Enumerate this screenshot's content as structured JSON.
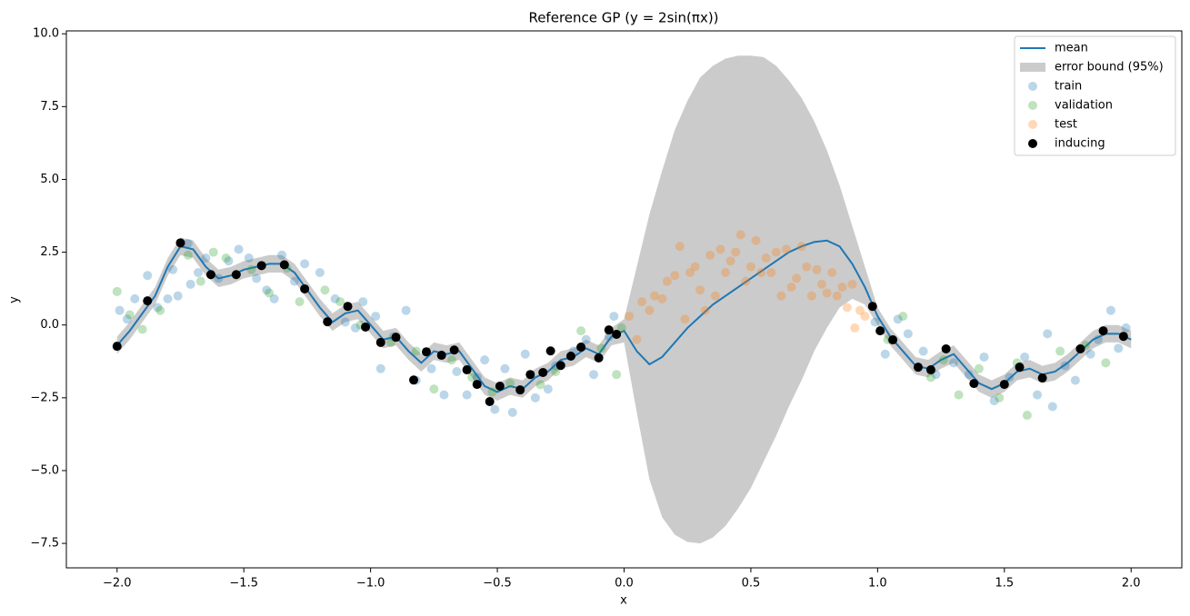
{
  "chart_data": {
    "type": "line",
    "title": "Reference GP (y = 2sin(πx))",
    "x_label": "x",
    "y_label": "y",
    "xlim": [
      -2.2,
      2.2
    ],
    "ylim": [
      -8.34,
      10.1
    ],
    "xticks": [
      {
        "value": -2,
        "label": "−2.0"
      },
      {
        "value": -1.5,
        "label": "−1.5"
      },
      {
        "value": -1,
        "label": "−1.0"
      },
      {
        "value": -0.5,
        "label": "−0.5"
      },
      {
        "value": 0,
        "label": "0.0"
      },
      {
        "value": 0.5,
        "label": "0.5"
      },
      {
        "value": 1,
        "label": "1.0"
      },
      {
        "value": 1.5,
        "label": "1.5"
      },
      {
        "value": 2,
        "label": "2.0"
      }
    ],
    "yticks": [
      {
        "value": -7.5,
        "label": "−7.5"
      },
      {
        "value": -5,
        "label": "−5.0"
      },
      {
        "value": -2.5,
        "label": "−2.5"
      },
      {
        "value": 0,
        "label": "0.0"
      },
      {
        "value": 2.5,
        "label": "2.5"
      },
      {
        "value": 5,
        "label": "5.0"
      },
      {
        "value": 7.5,
        "label": "7.5"
      },
      {
        "value": 10,
        "label": "10.0"
      }
    ],
    "grid": false,
    "legend": "upper right",
    "series": [
      {
        "name": "mean",
        "type": "line",
        "color": "#1f77b4",
        "x": [
          -2,
          -1.95,
          -1.9,
          -1.85,
          -1.8,
          -1.75,
          -1.7,
          -1.65,
          -1.6,
          -1.55,
          -1.5,
          -1.45,
          -1.4,
          -1.35,
          -1.3,
          -1.25,
          -1.2,
          -1.15,
          -1.1,
          -1.05,
          -1,
          -0.95,
          -0.9,
          -0.85,
          -0.8,
          -0.75,
          -0.7,
          -0.65,
          -0.6,
          -0.55,
          -0.5,
          -0.45,
          -0.4,
          -0.35,
          -0.3,
          -0.25,
          -0.2,
          -0.15,
          -0.1,
          -0.05,
          0,
          0.05,
          0.1,
          0.15,
          0.2,
          0.25,
          0.3,
          0.35,
          0.4,
          0.45,
          0.5,
          0.55,
          0.6,
          0.65,
          0.7,
          0.75,
          0.8,
          0.85,
          0.9,
          0.95,
          1,
          1.05,
          1.1,
          1.15,
          1.2,
          1.25,
          1.3,
          1.35,
          1.4,
          1.45,
          1.5,
          1.55,
          1.6,
          1.65,
          1.7,
          1.75,
          1.8,
          1.85,
          1.9,
          1.95,
          2
        ],
        "values": [
          -0.7,
          -0.2,
          0.4,
          1.0,
          2.0,
          2.7,
          2.6,
          2.0,
          1.6,
          1.7,
          1.9,
          2.0,
          2.1,
          2.1,
          1.8,
          1.2,
          0.6,
          0.1,
          0.4,
          0.5,
          0.0,
          -0.5,
          -0.4,
          -0.9,
          -1.3,
          -0.9,
          -1.0,
          -0.9,
          -1.5,
          -2.1,
          -2.3,
          -2.1,
          -2.2,
          -1.8,
          -1.6,
          -1.2,
          -1.1,
          -0.8,
          -1.0,
          -0.4,
          -0.2,
          -0.9,
          -1.35,
          -1.1,
          -0.6,
          -0.1,
          0.3,
          0.7,
          1.0,
          1.3,
          1.6,
          1.9,
          2.2,
          2.5,
          2.7,
          2.85,
          2.9,
          2.7,
          2.1,
          1.3,
          0.3,
          -0.4,
          -0.9,
          -1.4,
          -1.5,
          -1.2,
          -1.0,
          -1.5,
          -2.0,
          -2.2,
          -2.0,
          -1.6,
          -1.5,
          -1.7,
          -1.6,
          -1.3,
          -0.9,
          -0.5,
          -0.3,
          -0.3,
          -0.5
        ]
      },
      {
        "name": "error bound (95%)",
        "type": "area",
        "color": "#cbcbcb",
        "x": [
          -2,
          -1.95,
          -1.9,
          -1.85,
          -1.8,
          -1.75,
          -1.7,
          -1.65,
          -1.6,
          -1.55,
          -1.5,
          -1.45,
          -1.4,
          -1.35,
          -1.3,
          -1.25,
          -1.2,
          -1.15,
          -1.1,
          -1.05,
          -1,
          -0.95,
          -0.9,
          -0.85,
          -0.8,
          -0.75,
          -0.7,
          -0.65,
          -0.6,
          -0.55,
          -0.5,
          -0.45,
          -0.4,
          -0.35,
          -0.3,
          -0.25,
          -0.2,
          -0.15,
          -0.1,
          -0.05,
          0,
          0.05,
          0.1,
          0.15,
          0.2,
          0.25,
          0.3,
          0.35,
          0.4,
          0.45,
          0.5,
          0.55,
          0.6,
          0.65,
          0.7,
          0.75,
          0.8,
          0.85,
          0.9,
          0.95,
          1,
          1.05,
          1.1,
          1.15,
          1.2,
          1.25,
          1.3,
          1.35,
          1.4,
          1.45,
          1.5,
          1.55,
          1.6,
          1.65,
          1.7,
          1.75,
          1.8,
          1.85,
          1.9,
          1.95,
          2
        ],
        "lower": [
          -1.0,
          -0.5,
          0.1,
          0.7,
          1.7,
          2.4,
          2.3,
          1.7,
          1.3,
          1.4,
          1.6,
          1.7,
          1.8,
          1.8,
          1.5,
          0.9,
          0.3,
          -0.2,
          0.1,
          0.2,
          -0.3,
          -0.8,
          -0.7,
          -1.2,
          -1.6,
          -1.2,
          -1.3,
          -1.2,
          -1.8,
          -2.4,
          -2.6,
          -2.4,
          -2.5,
          -2.1,
          -1.9,
          -1.5,
          -1.4,
          -1.1,
          -1.3,
          -0.7,
          -0.6,
          -3.0,
          -5.3,
          -6.6,
          -7.2,
          -7.45,
          -7.5,
          -7.3,
          -6.9,
          -6.3,
          -5.6,
          -4.7,
          -3.8,
          -2.8,
          -1.9,
          -0.9,
          -0.1,
          0.6,
          0.9,
          0.7,
          0.0,
          -0.7,
          -1.2,
          -1.7,
          -1.8,
          -1.5,
          -1.3,
          -1.8,
          -2.3,
          -2.5,
          -2.3,
          -1.9,
          -1.8,
          -2.0,
          -1.9,
          -1.6,
          -1.2,
          -0.8,
          -0.6,
          -0.6,
          -0.8
        ],
        "upper": [
          -0.4,
          0.1,
          0.7,
          1.3,
          2.3,
          3.0,
          2.9,
          2.3,
          1.9,
          2.0,
          2.2,
          2.3,
          2.4,
          2.4,
          2.1,
          1.5,
          0.9,
          0.4,
          0.7,
          0.8,
          0.3,
          -0.2,
          -0.1,
          -0.6,
          -1.0,
          -0.6,
          -0.7,
          -0.6,
          -1.2,
          -1.8,
          -2.0,
          -1.8,
          -1.9,
          -1.5,
          -1.3,
          -0.9,
          -0.8,
          -0.5,
          -0.7,
          -0.1,
          0.2,
          2.0,
          3.8,
          5.3,
          6.7,
          7.7,
          8.5,
          8.9,
          9.15,
          9.25,
          9.25,
          9.2,
          8.9,
          8.4,
          7.8,
          7.0,
          6.0,
          4.8,
          3.4,
          2.0,
          0.6,
          -0.1,
          -0.6,
          -1.1,
          -1.2,
          -0.9,
          -0.7,
          -1.2,
          -1.7,
          -1.9,
          -1.7,
          -1.3,
          -1.2,
          -1.4,
          -1.3,
          -1.0,
          -0.6,
          -0.2,
          0.0,
          0.0,
          -0.2
        ]
      },
      {
        "name": "train",
        "type": "scatter",
        "color": "#1f77b4",
        "alpha": 0.3,
        "x": [
          -1.99,
          -1.96,
          -1.93,
          -1.88,
          -1.84,
          -1.8,
          -1.78,
          -1.76,
          -1.72,
          -1.71,
          -1.68,
          -1.65,
          -1.6,
          -1.56,
          -1.52,
          -1.48,
          -1.45,
          -1.41,
          -1.38,
          -1.35,
          -1.3,
          -1.26,
          -1.2,
          -1.14,
          -1.1,
          -1.06,
          -1.03,
          -0.98,
          -0.96,
          -0.91,
          -0.86,
          -0.82,
          -0.76,
          -0.71,
          -0.66,
          -0.62,
          -0.58,
          -0.55,
          -0.51,
          -0.47,
          -0.44,
          -0.39,
          -0.35,
          -0.3,
          -0.27,
          -0.2,
          -0.15,
          -0.12,
          -0.06,
          -0.04,
          0.99,
          1.03,
          1.08,
          1.12,
          1.18,
          1.23,
          1.3,
          1.36,
          1.42,
          1.46,
          1.52,
          1.58,
          1.63,
          1.67,
          1.69,
          1.74,
          1.78,
          1.84,
          1.87,
          1.92,
          1.95,
          1.98
        ],
        "values": [
          0.5,
          0.2,
          0.9,
          1.7,
          0.6,
          0.9,
          1.9,
          1.0,
          2.8,
          1.4,
          1.8,
          2.3,
          1.6,
          2.2,
          2.6,
          2.3,
          1.6,
          1.2,
          0.9,
          2.4,
          1.5,
          2.1,
          1.8,
          0.9,
          0.1,
          -0.1,
          0.8,
          0.3,
          -1.5,
          -0.4,
          0.5,
          -1.9,
          -1.5,
          -2.4,
          -1.6,
          -2.4,
          -1.8,
          -1.2,
          -2.9,
          -1.5,
          -3.0,
          -1.0,
          -2.5,
          -2.2,
          -1.4,
          -0.9,
          -0.5,
          -1.7,
          -0.4,
          0.3,
          0.1,
          -1.0,
          0.2,
          -0.3,
          -0.9,
          -1.7,
          -1.3,
          -1.7,
          -1.1,
          -2.6,
          -1.8,
          -1.1,
          -2.4,
          -0.3,
          -2.8,
          -1.4,
          -1.9,
          -1.0,
          -0.5,
          0.5,
          -0.8,
          -0.1
        ]
      },
      {
        "name": "validation",
        "type": "scatter",
        "color": "#2ca02c",
        "alpha": 0.3,
        "x": [
          -2.0,
          -1.95,
          -1.9,
          -1.83,
          -1.72,
          -1.67,
          -1.62,
          -1.57,
          -1.47,
          -1.4,
          -1.33,
          -1.28,
          -1.18,
          -1.12,
          -1.04,
          -0.92,
          -0.82,
          -0.75,
          -0.68,
          -0.6,
          -0.52,
          -0.45,
          -0.33,
          -0.27,
          -0.17,
          -0.09,
          -0.03,
          -0.01,
          1.04,
          1.1,
          1.21,
          1.26,
          1.32,
          1.4,
          1.48,
          1.55,
          1.59,
          1.72,
          1.82,
          1.9
        ],
        "values": [
          1.15,
          0.35,
          -0.15,
          0.5,
          2.4,
          1.5,
          2.5,
          2.3,
          1.9,
          1.1,
          1.95,
          0.8,
          1.2,
          0.8,
          0.0,
          -0.6,
          -0.9,
          -2.2,
          -1.2,
          -1.8,
          -2.3,
          -2.0,
          -2.05,
          -1.6,
          -0.2,
          -0.8,
          -1.7,
          -0.1,
          -0.5,
          0.3,
          -1.8,
          -1.2,
          -2.4,
          -1.5,
          -2.5,
          -1.3,
          -3.1,
          -0.9,
          -0.7,
          -1.3
        ]
      },
      {
        "name": "test",
        "type": "scatter",
        "color": "#ff7f0e",
        "alpha": 0.3,
        "x": [
          0.02,
          0.05,
          0.07,
          0.1,
          0.12,
          0.15,
          0.17,
          0.2,
          0.22,
          0.24,
          0.26,
          0.28,
          0.3,
          0.32,
          0.34,
          0.36,
          0.38,
          0.4,
          0.42,
          0.44,
          0.46,
          0.48,
          0.5,
          0.52,
          0.54,
          0.56,
          0.58,
          0.6,
          0.62,
          0.64,
          0.66,
          0.68,
          0.7,
          0.72,
          0.74,
          0.76,
          0.78,
          0.8,
          0.82,
          0.84,
          0.86,
          0.88,
          0.9,
          0.91,
          0.93,
          0.95
        ],
        "values": [
          0.3,
          -0.5,
          0.8,
          0.5,
          1.0,
          0.9,
          1.5,
          1.7,
          2.7,
          0.2,
          1.8,
          2.0,
          1.2,
          0.5,
          2.4,
          1.0,
          2.6,
          1.8,
          2.2,
          2.5,
          3.1,
          1.5,
          2.0,
          2.9,
          1.8,
          2.3,
          1.8,
          2.5,
          1.0,
          2.6,
          1.3,
          1.6,
          2.7,
          2.0,
          1.0,
          1.9,
          1.4,
          1.1,
          1.8,
          1.0,
          1.3,
          0.6,
          1.4,
          -0.1,
          0.5,
          0.3
        ]
      },
      {
        "name": "inducing",
        "type": "scatter",
        "color": "#000000",
        "alpha": 1,
        "x": [
          -2.0,
          -1.88,
          -1.75,
          -1.63,
          -1.53,
          -1.43,
          -1.34,
          -1.26,
          -1.17,
          -1.09,
          -1.02,
          -0.96,
          -0.9,
          -0.83,
          -0.78,
          -0.72,
          -0.67,
          -0.62,
          -0.58,
          -0.53,
          -0.49,
          -0.41,
          -0.37,
          -0.32,
          -0.29,
          -0.25,
          -0.21,
          -0.17,
          -0.1,
          -0.06,
          -0.03,
          0.98,
          1.01,
          1.06,
          1.16,
          1.21,
          1.27,
          1.38,
          1.5,
          1.56,
          1.65,
          1.8,
          1.89,
          1.97
        ],
        "values": [
          -0.73,
          0.83,
          2.82,
          1.73,
          1.73,
          2.04,
          2.07,
          1.24,
          0.11,
          0.64,
          -0.07,
          -0.6,
          -0.42,
          -1.89,
          -0.92,
          -1.04,
          -0.86,
          -1.54,
          -2.04,
          -2.63,
          -2.1,
          -2.23,
          -1.7,
          -1.63,
          -0.89,
          -1.39,
          -1.07,
          -0.76,
          -1.13,
          -0.17,
          -0.32,
          0.64,
          -0.2,
          -0.51,
          -1.45,
          -1.54,
          -0.82,
          -2.01,
          -2.04,
          -1.45,
          -1.82,
          -0.82,
          -0.2,
          -0.39
        ]
      }
    ]
  }
}
